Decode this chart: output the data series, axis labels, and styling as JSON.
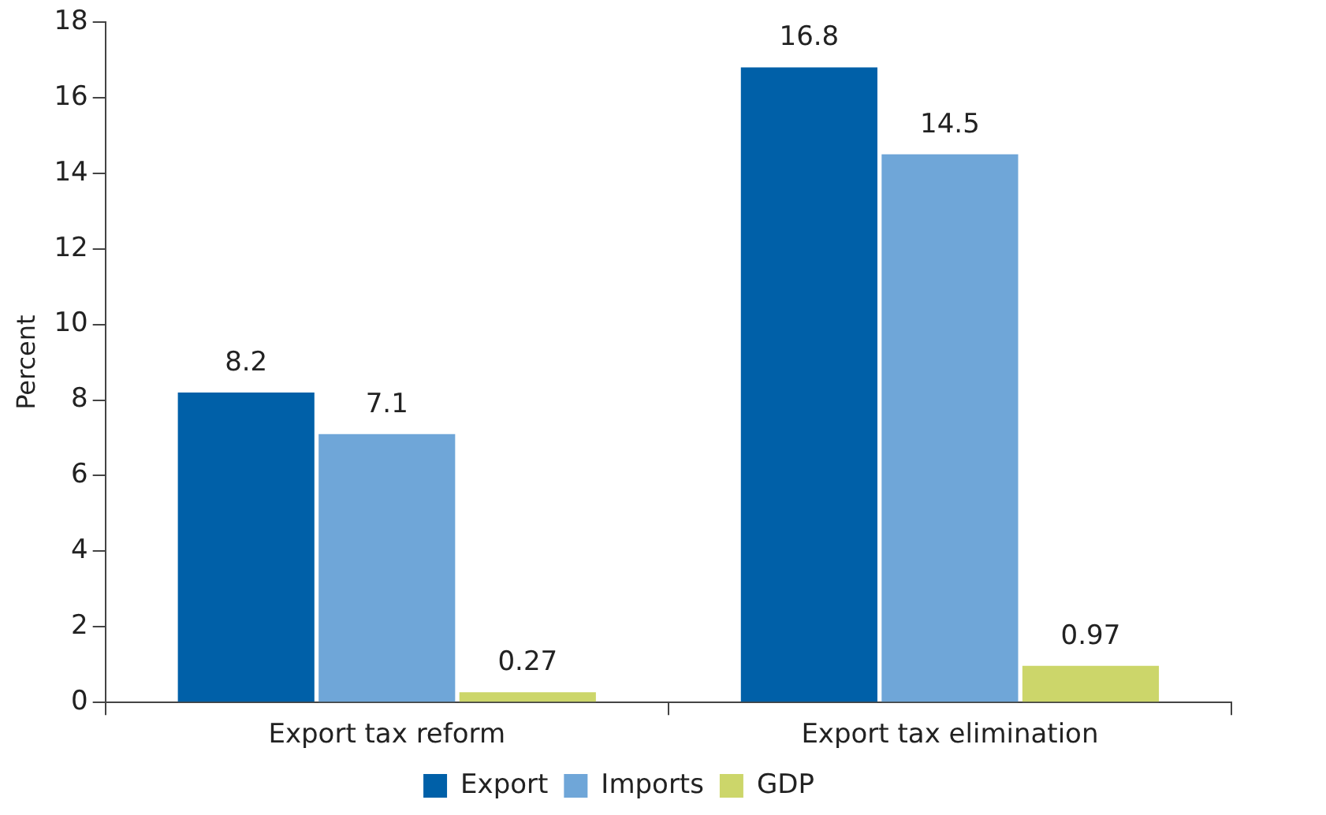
{
  "chart_data": {
    "type": "bar",
    "ylabel": "Percent",
    "categories": [
      "Export tax reform",
      "Export tax elimination"
    ],
    "series": [
      {
        "name": "Export",
        "color": "#0060a8",
        "values": [
          8.2,
          16.8
        ]
      },
      {
        "name": "Imports",
        "color": "#6fa6d8",
        "values": [
          7.1,
          14.5
        ]
      },
      {
        "name": "GDP",
        "color": "#ccd66a",
        "values": [
          0.27,
          0.97
        ]
      }
    ],
    "ylim": [
      0,
      18
    ],
    "yticks": [
      0,
      2,
      4,
      6,
      8,
      10,
      12,
      14,
      16,
      18
    ],
    "grid": false,
    "legend": "bottom",
    "data_labels": true
  }
}
